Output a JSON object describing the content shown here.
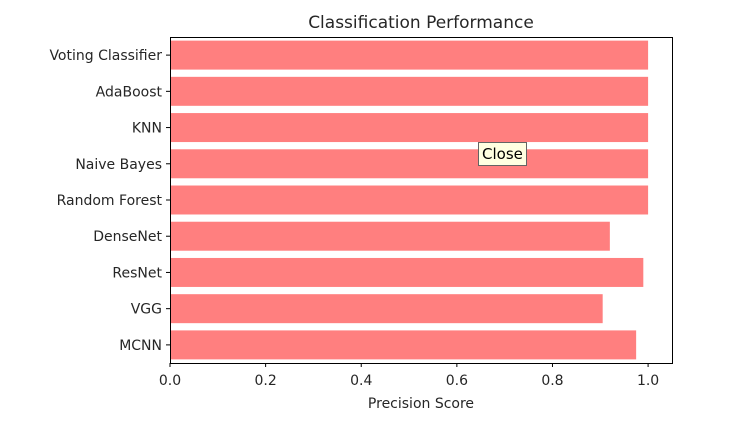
{
  "chart_data": {
    "type": "bar",
    "orientation": "horizontal",
    "title": "Classification Performance",
    "xlabel": "Precision Score",
    "ylabel": "",
    "xlim": [
      0,
      1.05
    ],
    "xticks": [
      "0.0",
      "0.2",
      "0.4",
      "0.6",
      "0.8",
      "1.0"
    ],
    "categories": [
      "Voting Classifier",
      "AdaBoost",
      "KNN",
      "Naive Bayes",
      "Random Forest",
      "DenseNet",
      "ResNet",
      "VGG",
      "MCNN"
    ],
    "values": [
      1.0,
      1.0,
      1.0,
      1.0,
      1.0,
      0.92,
      0.99,
      0.905,
      0.975
    ],
    "bar_color": "#ff7f7f",
    "grid": false,
    "legend": "none"
  },
  "tooltip": {
    "label": "Close"
  }
}
